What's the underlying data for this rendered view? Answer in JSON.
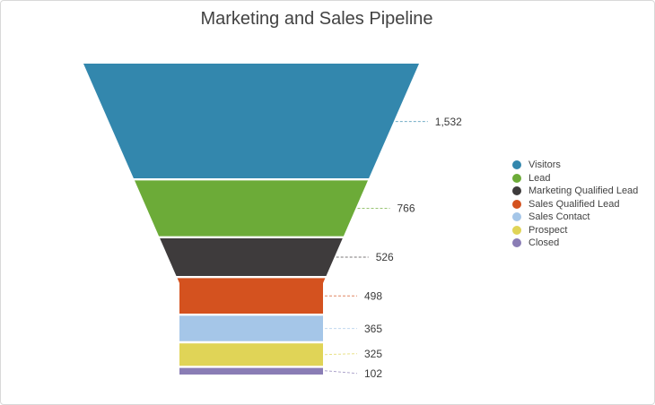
{
  "window": {
    "background": "#ffffff",
    "border_color": "#d9d9d9"
  },
  "chart_data": {
    "type": "funnel",
    "title": "Marketing and Sales Pipeline",
    "legend_position": "right",
    "legend_marker": "circle",
    "label_color": "#3a3a3a",
    "points": [
      {
        "label": "Visitors",
        "value": 1532,
        "display_value": "1,532",
        "color": "#3387ad"
      },
      {
        "label": "Lead",
        "value": 766,
        "display_value": "766",
        "color": "#6cab38"
      },
      {
        "label": "Marketing Qualified Lead",
        "value": 526,
        "display_value": "526",
        "color": "#3e3b3c"
      },
      {
        "label": "Sales Qualified Lead",
        "value": 498,
        "display_value": "498",
        "color": "#d4521f"
      },
      {
        "label": "Sales Contact",
        "value": 365,
        "display_value": "365",
        "color": "#a5c6e8"
      },
      {
        "label": "Prospect",
        "value": 325,
        "display_value": "325",
        "color": "#e0d457"
      },
      {
        "label": "Closed",
        "value": 102,
        "display_value": "102",
        "color": "#8a7db5"
      }
    ]
  }
}
